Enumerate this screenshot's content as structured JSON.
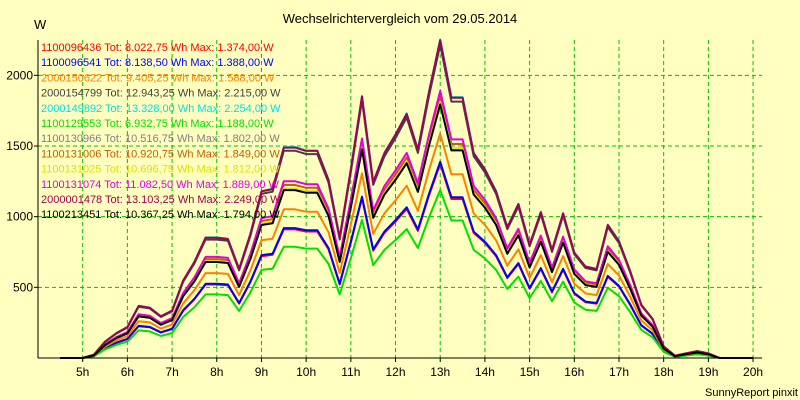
{
  "chart_data": {
    "type": "line",
    "title": "Wechselrichtervergleich vom 29.05.2014",
    "ylabel": "W",
    "xlabel": "",
    "ylim": [
      0,
      2250
    ],
    "xlim": [
      4.0,
      20.2
    ],
    "x_ticks": [
      5,
      6,
      7,
      8,
      9,
      10,
      11,
      12,
      13,
      14,
      15,
      16,
      17,
      18,
      19,
      20
    ],
    "x_tick_labels": [
      "5h",
      "6h",
      "7h",
      "8h",
      "9h",
      "10h",
      "11h",
      "12h",
      "13h",
      "14h",
      "15h",
      "16h",
      "17h",
      "18h",
      "19h",
      "20h"
    ],
    "y_ticks": [
      500,
      1000,
      1500,
      2000
    ],
    "y_tick_labels": [
      "500",
      "1000",
      "1500",
      "2000"
    ],
    "grid": true,
    "legend_position": "top-left",
    "x": [
      4.5,
      5.0,
      5.25,
      5.5,
      5.75,
      6.0,
      6.25,
      6.5,
      6.75,
      7.0,
      7.25,
      7.5,
      7.75,
      8.0,
      8.25,
      8.5,
      8.75,
      9.0,
      9.25,
      9.5,
      9.75,
      10.0,
      10.25,
      10.5,
      10.75,
      11.0,
      11.25,
      11.5,
      11.75,
      12.0,
      12.25,
      12.5,
      12.75,
      13.0,
      13.25,
      13.5,
      13.75,
      14.0,
      14.25,
      14.5,
      14.75,
      15.0,
      15.25,
      15.5,
      15.75,
      16.0,
      16.25,
      16.5,
      16.75,
      17.0,
      17.25,
      17.5,
      17.75,
      18.0,
      18.25,
      18.5,
      18.75,
      19.0,
      19.25,
      19.5,
      19.75,
      20.0
    ],
    "series": [
      {
        "name": "1100096436 Tot: 8.022,75 Wh Max: 1.374,00 W",
        "color": "#ff0000",
        "values": [
          0,
          0,
          14,
          70,
          107,
          134,
          225,
          218,
          180,
          205,
          335,
          415,
          520,
          520,
          515,
          385,
          535,
          720,
          730,
          910,
          910,
          895,
          895,
          770,
          520,
          815,
          1130,
          760,
          885,
          965,
          1055,
          900,
          1150,
          1374,
          1125,
          1125,
          885,
          815,
          720,
          565,
          665,
          490,
          630,
          465,
          625,
          455,
          395,
          385,
          575,
          505,
          375,
          230,
          170,
          50,
          10,
          20,
          30,
          20,
          0,
          0,
          0,
          0
        ]
      },
      {
        "name": "1100096541 Tot: 8.138,50 Wh Max: 1.388,00 W",
        "color": "#0000ff",
        "values": [
          0,
          0,
          14,
          71,
          108,
          135,
          227,
          220,
          182,
          207,
          338,
          419,
          525,
          525,
          520,
          389,
          540,
          728,
          737,
          919,
          919,
          904,
          904,
          778,
          525,
          823,
          1141,
          768,
          894,
          975,
          1066,
          909,
          1162,
          1388,
          1137,
          1137,
          894,
          823,
          728,
          571,
          672,
          495,
          636,
          470,
          631,
          460,
          399,
          389,
          581,
          510,
          379,
          232,
          172,
          51,
          10,
          20,
          30,
          20,
          0,
          0,
          0,
          0
        ]
      },
      {
        "name": "2000150622 Tot: 9.405,25 Wh Max: 1.588,00 W",
        "color": "#ff8000",
        "values": [
          0,
          0,
          16,
          81,
          124,
          155,
          260,
          252,
          208,
          237,
          387,
          480,
          601,
          601,
          595,
          445,
          618,
          833,
          844,
          1052,
          1052,
          1035,
          1035,
          890,
          601,
          942,
          1306,
          879,
          1023,
          1115,
          1219,
          1040,
          1329,
          1588,
          1300,
          1300,
          1023,
          942,
          833,
          653,
          769,
          566,
          728,
          537,
          722,
          526,
          457,
          445,
          665,
          584,
          434,
          266,
          197,
          58,
          12,
          23,
          35,
          23,
          0,
          0,
          0,
          0
        ]
      },
      {
        "name": "2000154799 Tot: 12.943,25 Wh Max: 2.215,00 W",
        "color": "#404040",
        "values": [
          0,
          0,
          23,
          113,
          172,
          216,
          363,
          351,
          290,
          330,
          540,
          669,
          838,
          838,
          830,
          620,
          862,
          1161,
          1177,
          1467,
          1467,
          1443,
          1443,
          1241,
          838,
          1314,
          1822,
          1225,
          1427,
          1556,
          1701,
          1451,
          1854,
          2215,
          1814,
          1814,
          1427,
          1314,
          1161,
          911,
          1072,
          790,
          1016,
          750,
          1008,
          734,
          637,
          620,
          927,
          814,
          605,
          371,
          274,
          81,
          16,
          32,
          48,
          32,
          0,
          0,
          0,
          0
        ]
      },
      {
        "name": "2000149892 Tot: 13.328,00 Wh Max: 2.254,00 W",
        "color": "#00e0e0",
        "values": [
          0,
          0,
          23,
          115,
          175,
          220,
          369,
          357,
          295,
          336,
          549,
          681,
          853,
          853,
          844,
          631,
          877,
          1181,
          1198,
          1493,
          1493,
          1468,
          1468,
          1263,
          853,
          1337,
          1854,
          1247,
          1452,
          1583,
          1731,
          1476,
          1887,
          2254,
          1846,
          1846,
          1452,
          1337,
          1181,
          927,
          1091,
          804,
          1034,
          763,
          1025,
          746,
          648,
          631,
          943,
          828,
          615,
          377,
          279,
          82,
          16,
          33,
          49,
          33,
          0,
          0,
          0,
          0
        ]
      },
      {
        "name": "1100129553 Tot: 6.932,75 Wh Max: 1.188,00 W",
        "color": "#00e000",
        "values": [
          0,
          0,
          12,
          61,
          93,
          116,
          195,
          188,
          156,
          177,
          290,
          359,
          450,
          450,
          445,
          333,
          463,
          623,
          631,
          787,
          787,
          774,
          774,
          666,
          450,
          705,
          977,
          657,
          765,
          834,
          912,
          778,
          994,
          1188,
          973,
          973,
          765,
          705,
          623,
          489,
          575,
          424,
          545,
          402,
          540,
          393,
          342,
          333,
          497,
          437,
          324,
          199,
          147,
          43,
          9,
          17,
          26,
          17,
          0,
          0,
          0,
          0
        ]
      },
      {
        "name": "1100130966 Tot: 10.516,75 Wh Max: 1.802,00 W",
        "color": "#808080",
        "values": [
          0,
          0,
          18,
          92,
          140,
          176,
          295,
          286,
          236,
          269,
          439,
          544,
          682,
          682,
          675,
          505,
          701,
          945,
          957,
          1193,
          1193,
          1174,
          1174,
          1010,
          682,
          1069,
          1482,
          997,
          1161,
          1266,
          1384,
          1180,
          1509,
          1802,
          1476,
          1476,
          1161,
          1069,
          945,
          741,
          872,
          643,
          826,
          610,
          820,
          597,
          518,
          505,
          754,
          662,
          492,
          302,
          223,
          66,
          13,
          26,
          39,
          26,
          0,
          0,
          0,
          0
        ]
      },
      {
        "name": "1100131006 Tot: 10.920,75 Wh Max: 1.849,00 W",
        "color": "#c06000",
        "values": [
          0,
          0,
          19,
          94,
          144,
          181,
          303,
          293,
          242,
          276,
          450,
          559,
          700,
          700,
          693,
          518,
          719,
          969,
          982,
          1224,
          1224,
          1204,
          1204,
          1036,
          700,
          1096,
          1521,
          1023,
          1191,
          1299,
          1420,
          1211,
          1548,
          1849,
          1514,
          1514,
          1191,
          1096,
          969,
          761,
          895,
          659,
          848,
          626,
          841,
          612,
          532,
          518,
          774,
          679,
          505,
          310,
          229,
          68,
          13,
          27,
          40,
          27,
          0,
          0,
          0,
          0
        ]
      },
      {
        "name": "1100131025 Tot: 10.696,75 Wh Max: 1.812,00 W",
        "color": "#e0e000",
        "values": [
          0,
          0,
          18,
          92,
          141,
          177,
          297,
          287,
          237,
          270,
          441,
          547,
          686,
          686,
          679,
          508,
          705,
          950,
          962,
          1199,
          1199,
          1180,
          1180,
          1015,
          686,
          1075,
          1490,
          1002,
          1167,
          1273,
          1391,
          1187,
          1517,
          1812,
          1484,
          1484,
          1167,
          1075,
          950,
          746,
          877,
          646,
          831,
          614,
          825,
          600,
          521,
          508,
          758,
          666,
          495,
          304,
          224,
          66,
          13,
          26,
          40,
          26,
          0,
          0,
          0,
          0
        ]
      },
      {
        "name": "1100131074 Tot: 11.082,50 Wh Max: 1.889,00 W",
        "color": "#e000e0",
        "values": [
          0,
          0,
          19,
          96,
          147,
          184,
          309,
          299,
          247,
          282,
          460,
          571,
          715,
          715,
          708,
          529,
          735,
          990,
          1003,
          1251,
          1251,
          1230,
          1230,
          1058,
          715,
          1120,
          1553,
          1045,
          1217,
          1327,
          1451,
          1237,
          1581,
          1889,
          1547,
          1547,
          1217,
          1120,
          990,
          777,
          914,
          674,
          866,
          639,
          859,
          626,
          543,
          529,
          790,
          694,
          516,
          316,
          234,
          69,
          14,
          27,
          41,
          27,
          0,
          0,
          0,
          0
        ]
      },
      {
        "name": "2000001478 Tot: 13.103,25 Wh Max: 2.249,00 W",
        "color": "#a00050",
        "values": [
          0,
          0,
          23,
          115,
          175,
          219,
          368,
          356,
          295,
          335,
          548,
          679,
          851,
          851,
          842,
          630,
          875,
          1179,
          1195,
          1489,
          1489,
          1465,
          1465,
          1260,
          851,
          1334,
          1850,
          1244,
          1449,
          1580,
          1727,
          1473,
          1883,
          2249,
          1842,
          1842,
          1449,
          1334,
          1179,
          925,
          1089,
          802,
          1032,
          762,
          1023,
          745,
          647,
          630,
          941,
          826,
          614,
          377,
          278,
          82,
          16,
          33,
          49,
          33,
          0,
          0,
          0,
          0
        ]
      },
      {
        "name": "1100213451 Tot: 10.367,25 Wh Max: 1.794,00 W",
        "color": "#000000",
        "values": [
          0,
          0,
          18,
          91,
          140,
          175,
          294,
          285,
          235,
          268,
          437,
          542,
          679,
          679,
          672,
          503,
          698,
          941,
          953,
          1188,
          1188,
          1169,
          1169,
          1006,
          679,
          1064,
          1476,
          992,
          1156,
          1260,
          1378,
          1175,
          1502,
          1794,
          1469,
          1469,
          1156,
          1064,
          941,
          738,
          868,
          640,
          823,
          608,
          816,
          595,
          516,
          503,
          751,
          659,
          490,
          301,
          222,
          66,
          13,
          26,
          39,
          26,
          0,
          0,
          0,
          0
        ]
      }
    ]
  },
  "footer": "SunnyReport pinxit"
}
